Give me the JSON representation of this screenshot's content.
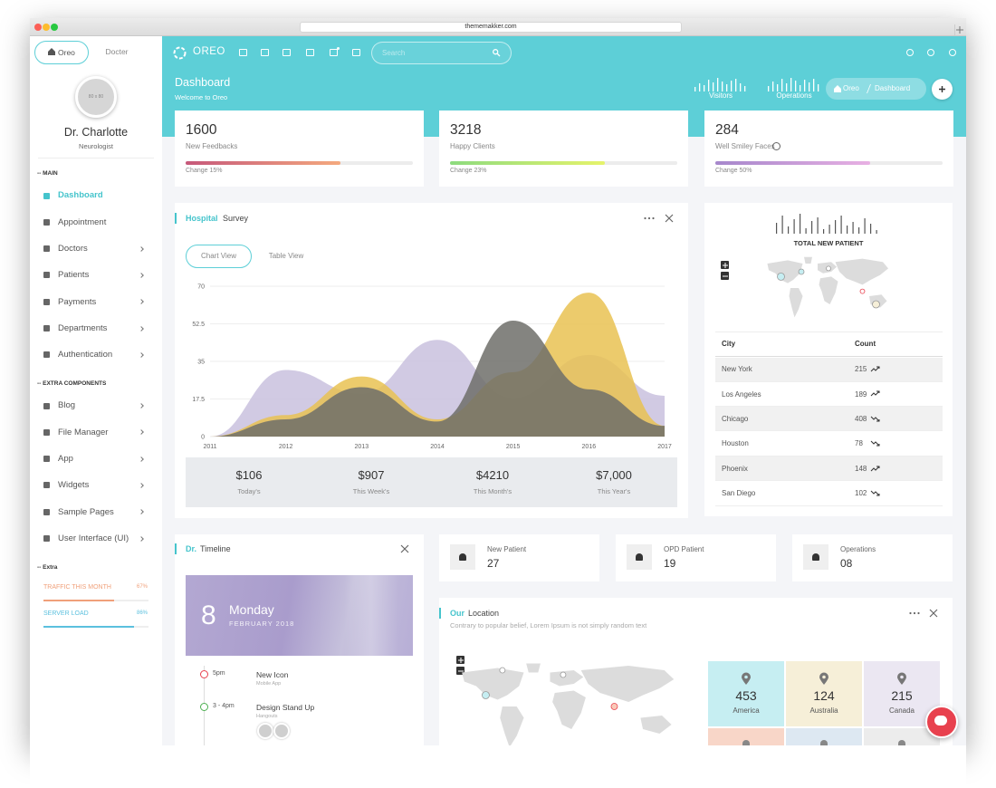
{
  "browser": {
    "url": "thememakker.com"
  },
  "sidebar": {
    "tabs": [
      "Oreo",
      "Docter"
    ],
    "avatar": "80 x 80",
    "name": "Dr. Charlotte",
    "role": "Neurologist",
    "sections": [
      {
        "title": "-- MAIN",
        "items": [
          {
            "label": "Dashboard",
            "active": true
          },
          {
            "label": "Appointment"
          },
          {
            "label": "Doctors",
            "submenu": true
          },
          {
            "label": "Patients",
            "submenu": true
          },
          {
            "label": "Payments",
            "submenu": true
          },
          {
            "label": "Departments",
            "submenu": true
          },
          {
            "label": "Authentication",
            "submenu": true
          }
        ]
      },
      {
        "title": "-- EXTRA COMPONENTS",
        "items": [
          {
            "label": "Blog",
            "submenu": true
          },
          {
            "label": "File Manager",
            "submenu": true
          },
          {
            "label": "App",
            "submenu": true
          },
          {
            "label": "Widgets",
            "submenu": true
          },
          {
            "label": "Sample Pages",
            "submenu": true
          },
          {
            "label": "User Interface (UI)",
            "submenu": true
          }
        ]
      }
    ],
    "extra": {
      "title": "-- Extra",
      "meters": [
        {
          "label": "TRAFFIC THIS MONTH",
          "value": 67,
          "value_label": "67%",
          "color": "#f0a07a"
        },
        {
          "label": "SERVER LOAD",
          "value": 86,
          "value_label": "86%",
          "color": "#5bc0de"
        }
      ]
    }
  },
  "topbar": {
    "brand": "OREO",
    "search": "Search"
  },
  "header": {
    "title": "Dashboard",
    "subtitle": "Welcome to Oreo",
    "sparks": [
      {
        "label": "Visitors",
        "values": [
          5,
          9,
          7,
          13,
          10,
          15,
          11,
          8,
          12,
          14,
          9,
          6
        ]
      },
      {
        "label": "Operations",
        "values": [
          6,
          11,
          8,
          14,
          9,
          15,
          12,
          7,
          13,
          10,
          14,
          8
        ]
      }
    ],
    "breadcrumb": [
      "Oreo",
      "Dashboard"
    ]
  },
  "stats": [
    {
      "value": 1600,
      "label": "New Feedbacks",
      "change": "Change 15%",
      "progress": 68,
      "colors": [
        "#c6587a",
        "#f4a97e"
      ]
    },
    {
      "value": 3218,
      "label": "Happy Clients",
      "change": "Change 23%",
      "progress": 68,
      "colors": [
        "#8ddb7e",
        "#e6f36b"
      ]
    },
    {
      "value": 284,
      "label": "Well Smiley Faces",
      "change": "Change 50%",
      "progress": 68,
      "colors": [
        "#a687cc",
        "#e8b0e3"
      ]
    }
  ],
  "survey": {
    "title_accent": "Hospital",
    "title": "Survey",
    "tabs": [
      "Chart View",
      "Table View"
    ],
    "summary": [
      {
        "value": "$106",
        "label": "Today's"
      },
      {
        "value": "$907",
        "label": "This Week's"
      },
      {
        "value": "$4210",
        "label": "This Month's"
      },
      {
        "value": "$7,000",
        "label": "This Year's"
      }
    ]
  },
  "chart_data": {
    "type": "area",
    "x": [
      2011,
      2012,
      2013,
      2014,
      2015,
      2016,
      2017
    ],
    "xlim": [
      2011,
      2017
    ],
    "xticks": [
      2011,
      2012,
      2013,
      2014,
      2015,
      2016,
      2017
    ],
    "ylim": [
      0,
      70
    ],
    "yticks": [
      0,
      17.5,
      35,
      52.5,
      70
    ],
    "grid": true,
    "series": [
      {
        "color": "#c9c1de",
        "values": [
          0,
          31,
          20,
          45,
          18,
          38,
          19
        ]
      },
      {
        "color": "#e9c252",
        "values": [
          0,
          10,
          28,
          8,
          30,
          67,
          5
        ]
      },
      {
        "color": "#6f6e6a",
        "values": [
          0,
          8,
          23,
          7,
          54,
          22,
          5
        ]
      }
    ]
  },
  "patients": {
    "title": "TOTAL NEW PATIENT",
    "bars": [
      12,
      20,
      8,
      16,
      22,
      6,
      14,
      18,
      5,
      10,
      15,
      20,
      9,
      13,
      7,
      17,
      11,
      4
    ],
    "columns": [
      "City",
      "Count"
    ],
    "rows": [
      {
        "city": "New York",
        "count": 215,
        "trend": "up"
      },
      {
        "city": "Los Angeles",
        "count": 189,
        "trend": "up"
      },
      {
        "city": "Chicago",
        "count": 408,
        "trend": "down"
      },
      {
        "city": "Houston",
        "count": 78,
        "trend": "down"
      },
      {
        "city": "Phoenix",
        "count": 148,
        "trend": "up"
      },
      {
        "city": "San Diego",
        "count": 102,
        "trend": "down"
      }
    ]
  },
  "timeline": {
    "title_accent": "Dr.",
    "title": "Timeline",
    "day": "8",
    "weekday": "Monday",
    "month": "FEBRUARY 2018",
    "events": [
      {
        "time": "5pm",
        "title": "New Icon",
        "sub": "Mobile App",
        "color": "#e8414e"
      },
      {
        "time": "3 - 4pm",
        "title": "Design Stand Up",
        "sub": "Hangouts",
        "color": "#4caf50"
      }
    ]
  },
  "mini_stats": [
    {
      "label": "New Patient",
      "value": "27"
    },
    {
      "label": "OPD Patient",
      "value": "19"
    },
    {
      "label": "Operations",
      "value": "08"
    }
  ],
  "location": {
    "title_accent": "Our",
    "title": "Location",
    "description": "Contrary to popular belief, Lorem Ipsum is not simply random text",
    "tiles": [
      {
        "value": 453,
        "label": "America",
        "color": "#c6eef2"
      },
      {
        "value": 124,
        "label": "Australia",
        "color": "#f6efd8"
      },
      {
        "value": 215,
        "label": "Canada",
        "color": "#ebe7f2"
      }
    ]
  }
}
